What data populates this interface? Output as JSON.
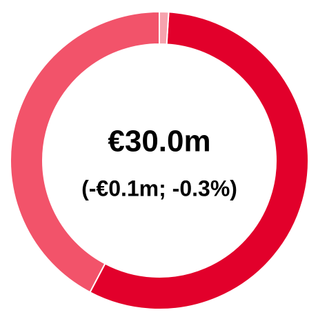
{
  "chart_data": {
    "type": "donut",
    "center_text": "€30.0m",
    "center_subtext": "(-€0.1m; -0.3%)",
    "values": [
      1,
      56.7,
      42.3
    ],
    "colors": [
      "#f6a3ae",
      "#e2002b",
      "#f2536a"
    ]
  }
}
